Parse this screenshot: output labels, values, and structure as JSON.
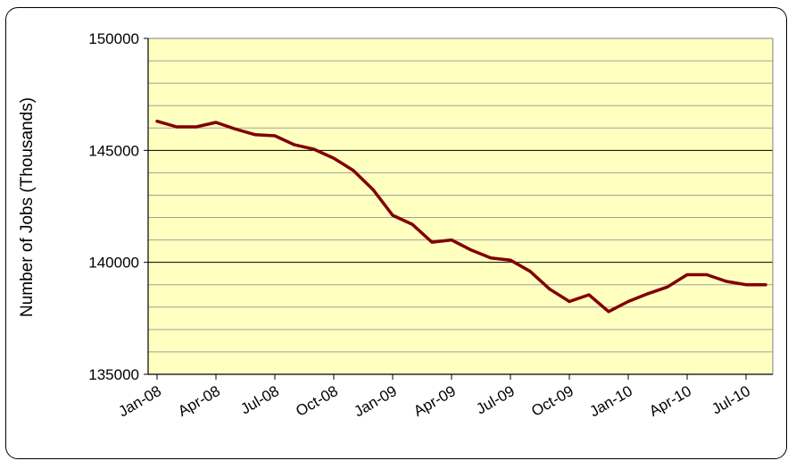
{
  "chart_data": {
    "type": "line",
    "title": "",
    "xlabel": "",
    "ylabel": "Number of Jobs (Thousands)",
    "ylim": [
      135000,
      150000
    ],
    "yticks": [
      135000,
      140000,
      145000,
      150000
    ],
    "x_tick_labels": [
      "Jan-08",
      "Apr-08",
      "Jul-08",
      "Oct-08",
      "Jan-09",
      "Apr-09",
      "Jul-09",
      "Oct-09",
      "Jan-10",
      "Apr-10",
      "Jul-10"
    ],
    "x": [
      "Jan-08",
      "Feb-08",
      "Mar-08",
      "Apr-08",
      "May-08",
      "Jun-08",
      "Jul-08",
      "Aug-08",
      "Sep-08",
      "Oct-08",
      "Nov-08",
      "Dec-08",
      "Jan-09",
      "Feb-09",
      "Mar-09",
      "Apr-09",
      "May-09",
      "Jun-09",
      "Jul-09",
      "Aug-09",
      "Sep-09",
      "Oct-09",
      "Nov-09",
      "Dec-09",
      "Jan-10",
      "Feb-10",
      "Mar-10",
      "Apr-10",
      "May-10",
      "Jun-10",
      "Jul-10",
      "Aug-10"
    ],
    "series": [
      {
        "values": [
          146300,
          146050,
          146050,
          146250,
          145950,
          145700,
          145650,
          145250,
          145050,
          144650,
          144100,
          143250,
          142100,
          141700,
          140900,
          141000,
          140550,
          140200,
          140100,
          139600,
          138800,
          138250,
          138550,
          137800,
          138250,
          138600,
          138900,
          139450,
          139450,
          139150,
          139000,
          139000
        ]
      }
    ],
    "grid": true,
    "legend": "none",
    "colors": {
      "line": "#800000",
      "plot_bg": "#ffffc0",
      "major_grid": "#000000",
      "minor_grid": "#a0a0a0"
    }
  }
}
